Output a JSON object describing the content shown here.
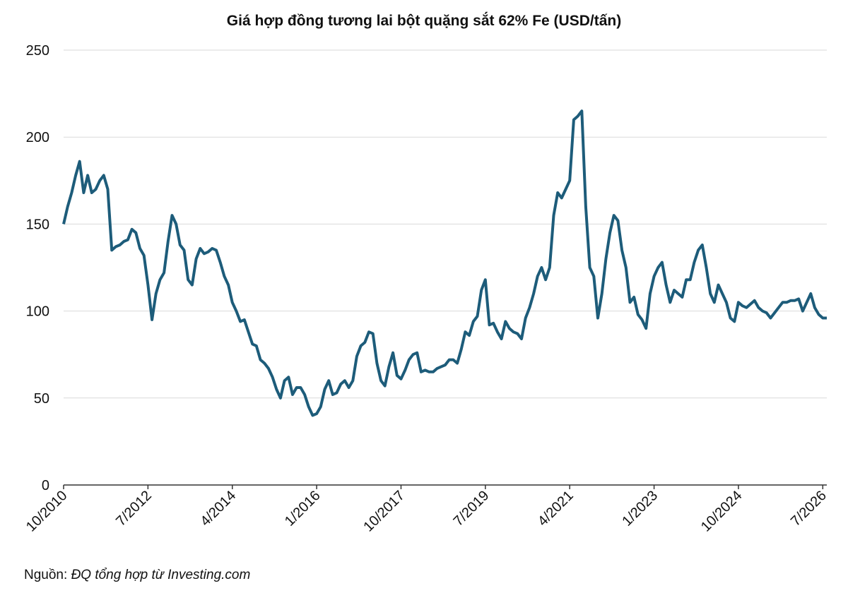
{
  "chart_data": {
    "type": "line",
    "title": "Giá hợp đồng tương lai bột quặng sắt 62% Fe (USD/tấn)",
    "source_label": "Nguồn:",
    "source": "ĐQ tổng hợp từ Investing.com",
    "x": [
      "10/2010",
      "11/2010",
      "12/2010",
      "1/2011",
      "2/2011",
      "3/2011",
      "4/2011",
      "5/2011",
      "6/2011",
      "7/2011",
      "8/2011",
      "9/2011",
      "10/2011",
      "11/2011",
      "12/2011",
      "1/2012",
      "2/2012",
      "3/2012",
      "4/2012",
      "5/2012",
      "6/2012",
      "7/2012",
      "8/2012",
      "9/2012",
      "10/2012",
      "11/2012",
      "12/2012",
      "1/2013",
      "2/2013",
      "3/2013",
      "4/2013",
      "5/2013",
      "6/2013",
      "7/2013",
      "8/2013",
      "9/2013",
      "10/2013",
      "11/2013",
      "12/2013",
      "1/2014",
      "2/2014",
      "3/2014",
      "4/2014",
      "5/2014",
      "6/2014",
      "7/2014",
      "8/2014",
      "9/2014",
      "10/2014",
      "11/2014",
      "12/2014",
      "1/2015",
      "2/2015",
      "3/2015",
      "4/2015",
      "5/2015",
      "6/2015",
      "7/2015",
      "8/2015",
      "9/2015",
      "10/2015",
      "11/2015",
      "12/2015",
      "1/2016",
      "2/2016",
      "3/2016",
      "4/2016",
      "5/2016",
      "6/2016",
      "7/2016",
      "8/2016",
      "9/2016",
      "10/2016",
      "11/2016",
      "12/2016",
      "1/2017",
      "2/2017",
      "3/2017",
      "4/2017",
      "5/2017",
      "6/2017",
      "7/2017",
      "8/2017",
      "9/2017",
      "10/2017",
      "11/2017",
      "12/2017",
      "1/2018",
      "2/2018",
      "3/2018",
      "4/2018",
      "5/2018",
      "6/2018",
      "7/2018",
      "8/2018",
      "9/2018",
      "10/2018",
      "11/2018",
      "12/2018",
      "1/2019",
      "2/2019",
      "3/2019",
      "4/2019",
      "5/2019",
      "6/2019",
      "7/2019",
      "8/2019",
      "9/2019",
      "10/2019",
      "11/2019",
      "12/2019",
      "1/2020",
      "2/2020",
      "3/2020",
      "4/2020",
      "5/2020",
      "6/2020",
      "7/2020",
      "8/2020",
      "9/2020",
      "10/2020",
      "11/2020",
      "12/2020",
      "1/2021",
      "2/2021",
      "3/2021",
      "4/2021",
      "5/2021",
      "6/2021",
      "7/2021",
      "8/2021",
      "9/2021",
      "10/2021",
      "11/2021",
      "12/2021",
      "1/2022",
      "2/2022",
      "3/2022",
      "4/2022",
      "5/2022",
      "6/2022",
      "7/2022",
      "8/2022",
      "9/2022",
      "10/2022",
      "11/2022",
      "12/2022",
      "1/2023",
      "2/2023",
      "3/2023",
      "4/2023",
      "5/2023",
      "6/2023",
      "7/2023",
      "8/2023",
      "9/2023",
      "10/2023",
      "11/2023",
      "12/2023",
      "1/2024",
      "2/2024",
      "3/2024",
      "4/2024",
      "5/2024",
      "6/2024",
      "7/2024",
      "8/2024",
      "9/2024",
      "10/2024",
      "11/2024",
      "12/2024",
      "1/2025",
      "2/2025",
      "3/2025",
      "4/2025",
      "5/2025",
      "6/2025",
      "7/2025",
      "8/2025",
      "9/2025",
      "10/2025",
      "11/2025",
      "12/2025",
      "1/2026",
      "2/2026",
      "3/2026",
      "4/2026",
      "5/2026",
      "6/2026",
      "7/2026",
      "8/2026"
    ],
    "series": [
      {
        "name": "62% Fe",
        "color": "#1d5c7a",
        "values": [
          150,
          160,
          168,
          178,
          186,
          168,
          178,
          168,
          170,
          175,
          178,
          170,
          135,
          137,
          138,
          140,
          141,
          147,
          145,
          136,
          132,
          115,
          95,
          110,
          118,
          122,
          140,
          155,
          150,
          138,
          135,
          118,
          115,
          130,
          136,
          133,
          134,
          136,
          135,
          128,
          120,
          115,
          105,
          100,
          94,
          95,
          88,
          81,
          80,
          72,
          70,
          67,
          62,
          55,
          50,
          60,
          62,
          52,
          56,
          56,
          52,
          45,
          40,
          41,
          45,
          55,
          60,
          52,
          53,
          58,
          60,
          56,
          60,
          74,
          80,
          82,
          88,
          87,
          70,
          60,
          57,
          68,
          76,
          63,
          61,
          66,
          72,
          75,
          76,
          65,
          66,
          65,
          65,
          67,
          68,
          69,
          72,
          72,
          70,
          78,
          88,
          86,
          94,
          97,
          112,
          118,
          92,
          93,
          88,
          84,
          94,
          90,
          88,
          87,
          84,
          96,
          102,
          110,
          120,
          125,
          118,
          125,
          155,
          168,
          165,
          170,
          175,
          210,
          212,
          215,
          160,
          125,
          120,
          96,
          110,
          130,
          145,
          155,
          152,
          135,
          125,
          105,
          108,
          98,
          95,
          90,
          110,
          120,
          125,
          128,
          115,
          105,
          112,
          110,
          108,
          118,
          118,
          128,
          135,
          138,
          125,
          110,
          105,
          115,
          110,
          105,
          96,
          94,
          105,
          103,
          102,
          104,
          106,
          102,
          100,
          99,
          96,
          99,
          102,
          105,
          105,
          106,
          106,
          107,
          100,
          105,
          110,
          102,
          98,
          96,
          96
        ]
      }
    ],
    "xlim": [
      "10/2010",
      "8/2026"
    ],
    "xticks": [
      "10/2010",
      "7/2012",
      "4/2014",
      "1/2016",
      "10/2017",
      "7/2019",
      "4/2021",
      "1/2023",
      "10/2024",
      "7/2026"
    ],
    "ylim": [
      0,
      250
    ],
    "yticks": [
      0,
      50,
      100,
      150,
      200,
      250
    ],
    "grid": true
  }
}
